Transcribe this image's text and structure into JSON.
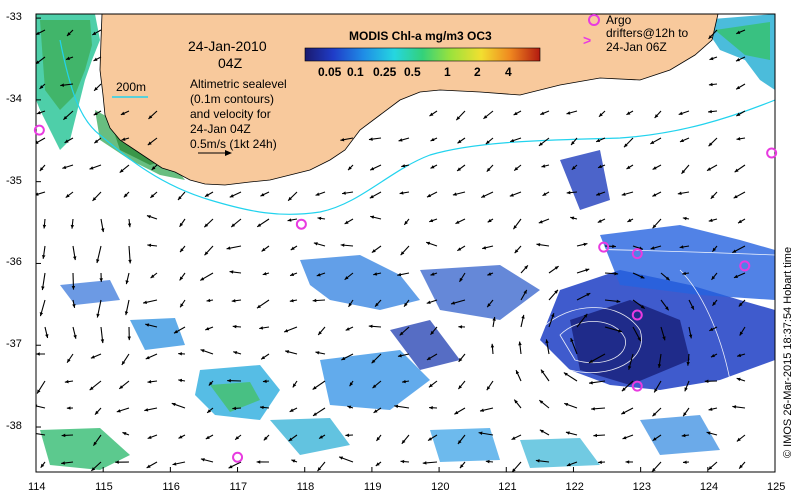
{
  "title": {
    "date": "24-Jan-2010",
    "hour": "04Z",
    "description": [
      "Altimetric sealevel",
      "(0.1m contours)",
      "and velocity for",
      "24-Jan 04Z",
      "0.5m/s (1kt 24h)"
    ],
    "isobath_label": "200m"
  },
  "colorbar": {
    "title": "MODIS Chl-a mg/m3 OC3",
    "ticks": [
      "0.05",
      "0.1",
      "0.25",
      "0.5",
      "1",
      "2",
      "4"
    ]
  },
  "argo_legend": {
    "lines": [
      "Argo",
      "drifters@12h to",
      "24-Jan 06Z"
    ]
  },
  "credit": "© IMOS 26-Mar-2015 18:37:54 Hobart time",
  "axes": {
    "x_ticks": [
      "114",
      "115",
      "116",
      "117",
      "118",
      "119",
      "120",
      "121",
      "122",
      "123",
      "124",
      "125"
    ],
    "y_ticks": [
      "-33",
      "-34",
      "-35",
      "-36",
      "-37",
      "-38"
    ],
    "xlim": [
      114,
      125
    ],
    "ylim": [
      -38.55,
      -32.95
    ]
  },
  "colors": {
    "land": "#f8c99c",
    "isobath": "#22d3ee",
    "argo": "#e83be0",
    "arrow": "#000000"
  },
  "argo_floats": [
    {
      "lon": 114.05,
      "lat": -34.37
    },
    {
      "lon": 117.95,
      "lat": -35.52
    },
    {
      "lon": 122.45,
      "lat": -35.8
    },
    {
      "lon": 122.95,
      "lat": -35.88
    },
    {
      "lon": 122.95,
      "lat": -36.63
    },
    {
      "lon": 122.95,
      "lat": -37.5
    },
    {
      "lon": 124.55,
      "lat": -36.03
    },
    {
      "lon": 124.95,
      "lat": -34.65
    },
    {
      "lon": 117.0,
      "lat": -38.37
    }
  ]
}
